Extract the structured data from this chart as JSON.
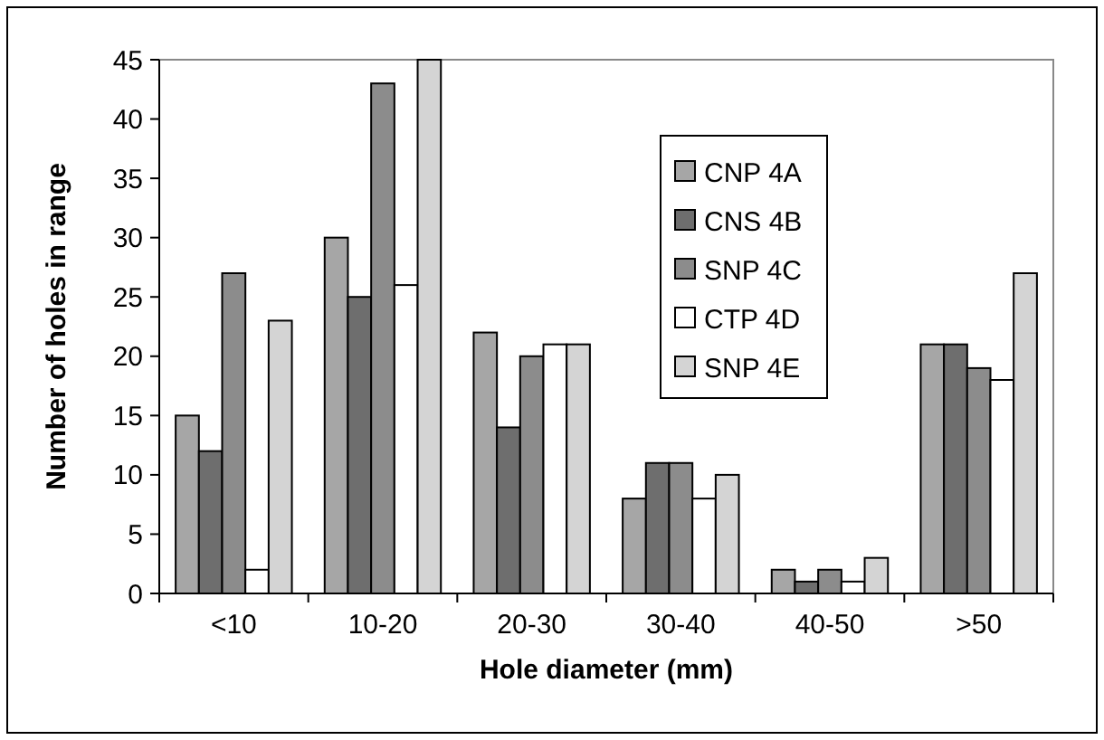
{
  "chart_data": {
    "type": "bar",
    "xlabel": "Hole diameter (mm)",
    "ylabel": "Number of holes in range",
    "categories": [
      "<10",
      "10-20",
      "20-30",
      "30-40",
      "40-50",
      ">50"
    ],
    "series": [
      {
        "name": "CNP 4A",
        "color": "#a6a6a6",
        "values": [
          15,
          30,
          22,
          8,
          2,
          21
        ]
      },
      {
        "name": "CNS 4B",
        "color": "#6e6e6e",
        "values": [
          12,
          25,
          14,
          11,
          1,
          21
        ]
      },
      {
        "name": "SNP 4C",
        "color": "#8c8c8c",
        "values": [
          27,
          43,
          20,
          11,
          2,
          19
        ]
      },
      {
        "name": "CTP 4D",
        "color": "#ffffff",
        "values": [
          2,
          26,
          21,
          8,
          1,
          18
        ]
      },
      {
        "name": "SNP 4E",
        "color": "#d4d4d4",
        "values": [
          23,
          45,
          21,
          10,
          3,
          27
        ]
      }
    ],
    "ylim": [
      0,
      45
    ],
    "yticks": [
      0,
      5,
      10,
      15,
      20,
      25,
      30,
      35,
      40,
      45
    ],
    "grid": false,
    "legend": "top right"
  }
}
